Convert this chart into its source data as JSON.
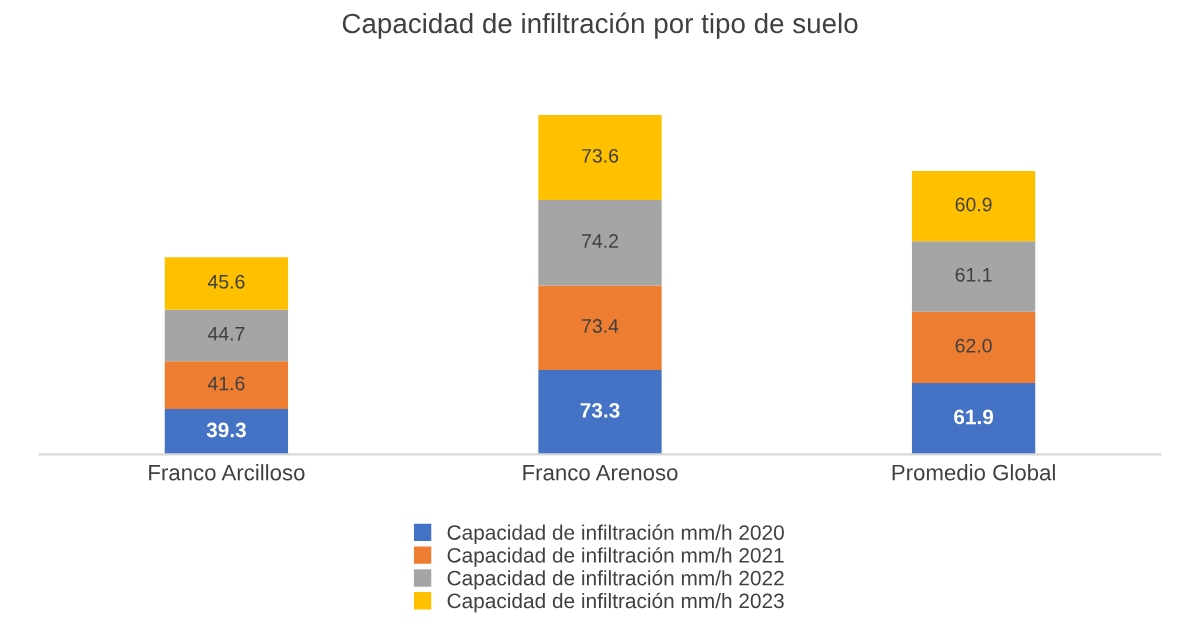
{
  "chart_data": {
    "type": "bar",
    "title": "Capacidad de infiltración por tipo de suelo",
    "categories": [
      "Franco Arcilloso",
      "Franco Arenoso",
      "Promedio Global"
    ],
    "stacked": true,
    "legend": "bottom",
    "grid": false,
    "series": [
      {
        "name": "Capacidad de infiltración mm/h 2020",
        "color": "#4472c4",
        "values": [
          39.3,
          73.3,
          61.9
        ],
        "value_labels": [
          "39.3",
          "73.3",
          "61.9"
        ]
      },
      {
        "name": "Capacidad de infiltración mm/h 2021",
        "color": "#ed7d31",
        "values": [
          41.6,
          73.4,
          62.0
        ],
        "value_labels": [
          "41.6",
          "73.4",
          "62.0"
        ]
      },
      {
        "name": "Capacidad de infiltración mm/h 2022",
        "color": "#a5a5a5",
        "values": [
          44.7,
          74.2,
          61.1
        ],
        "value_labels": [
          "44.7",
          "74.2",
          "61.1"
        ]
      },
      {
        "name": "Capacidad de infiltración mm/h 2023",
        "color": "#ffc000",
        "values": [
          45.6,
          73.6,
          60.9
        ],
        "value_labels": [
          "45.6",
          "73.6",
          "60.9"
        ]
      }
    ]
  }
}
